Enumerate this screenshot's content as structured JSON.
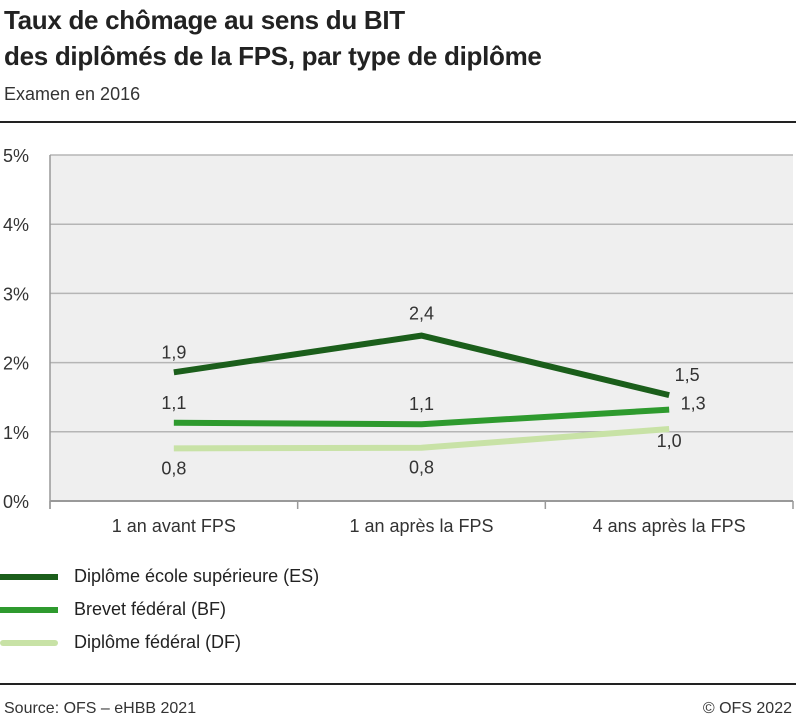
{
  "title_line1": "Taux de chômage au sens du BIT",
  "title_line2": "des diplômés de la FPS, par type de diplôme",
  "subtitle": "Examen en 2016",
  "source": "Source: OFS – eHBB 2021",
  "copyright": "© OFS 2022",
  "chart_data": {
    "type": "line",
    "categories": [
      "1 an avant FPS",
      "1 an après la FPS",
      "4 ans après la FPS"
    ],
    "ylim": [
      0,
      5
    ],
    "yticks": [
      "0%",
      "1%",
      "2%",
      "3%",
      "4%",
      "5%"
    ],
    "grid": true,
    "legend_position": "bottom",
    "series": [
      {
        "name": "Diplôme école supérieure (ES)",
        "color": "#1b5e1b",
        "values": [
          1.86,
          2.39,
          1.53
        ],
        "labels": [
          "1,9",
          "2,4",
          "1,5"
        ]
      },
      {
        "name": "Brevet fédéral (BF)",
        "color": "#2e9a2e",
        "values": [
          1.13,
          1.11,
          1.32
        ],
        "labels": [
          "1,1",
          "1,1",
          "1,3"
        ]
      },
      {
        "name": "Diplôme fédéral (DF)",
        "color": "#c8e2a6",
        "values": [
          0.76,
          0.77,
          1.04
        ],
        "labels": [
          "0,8",
          "0,8",
          "1,0"
        ]
      }
    ]
  }
}
